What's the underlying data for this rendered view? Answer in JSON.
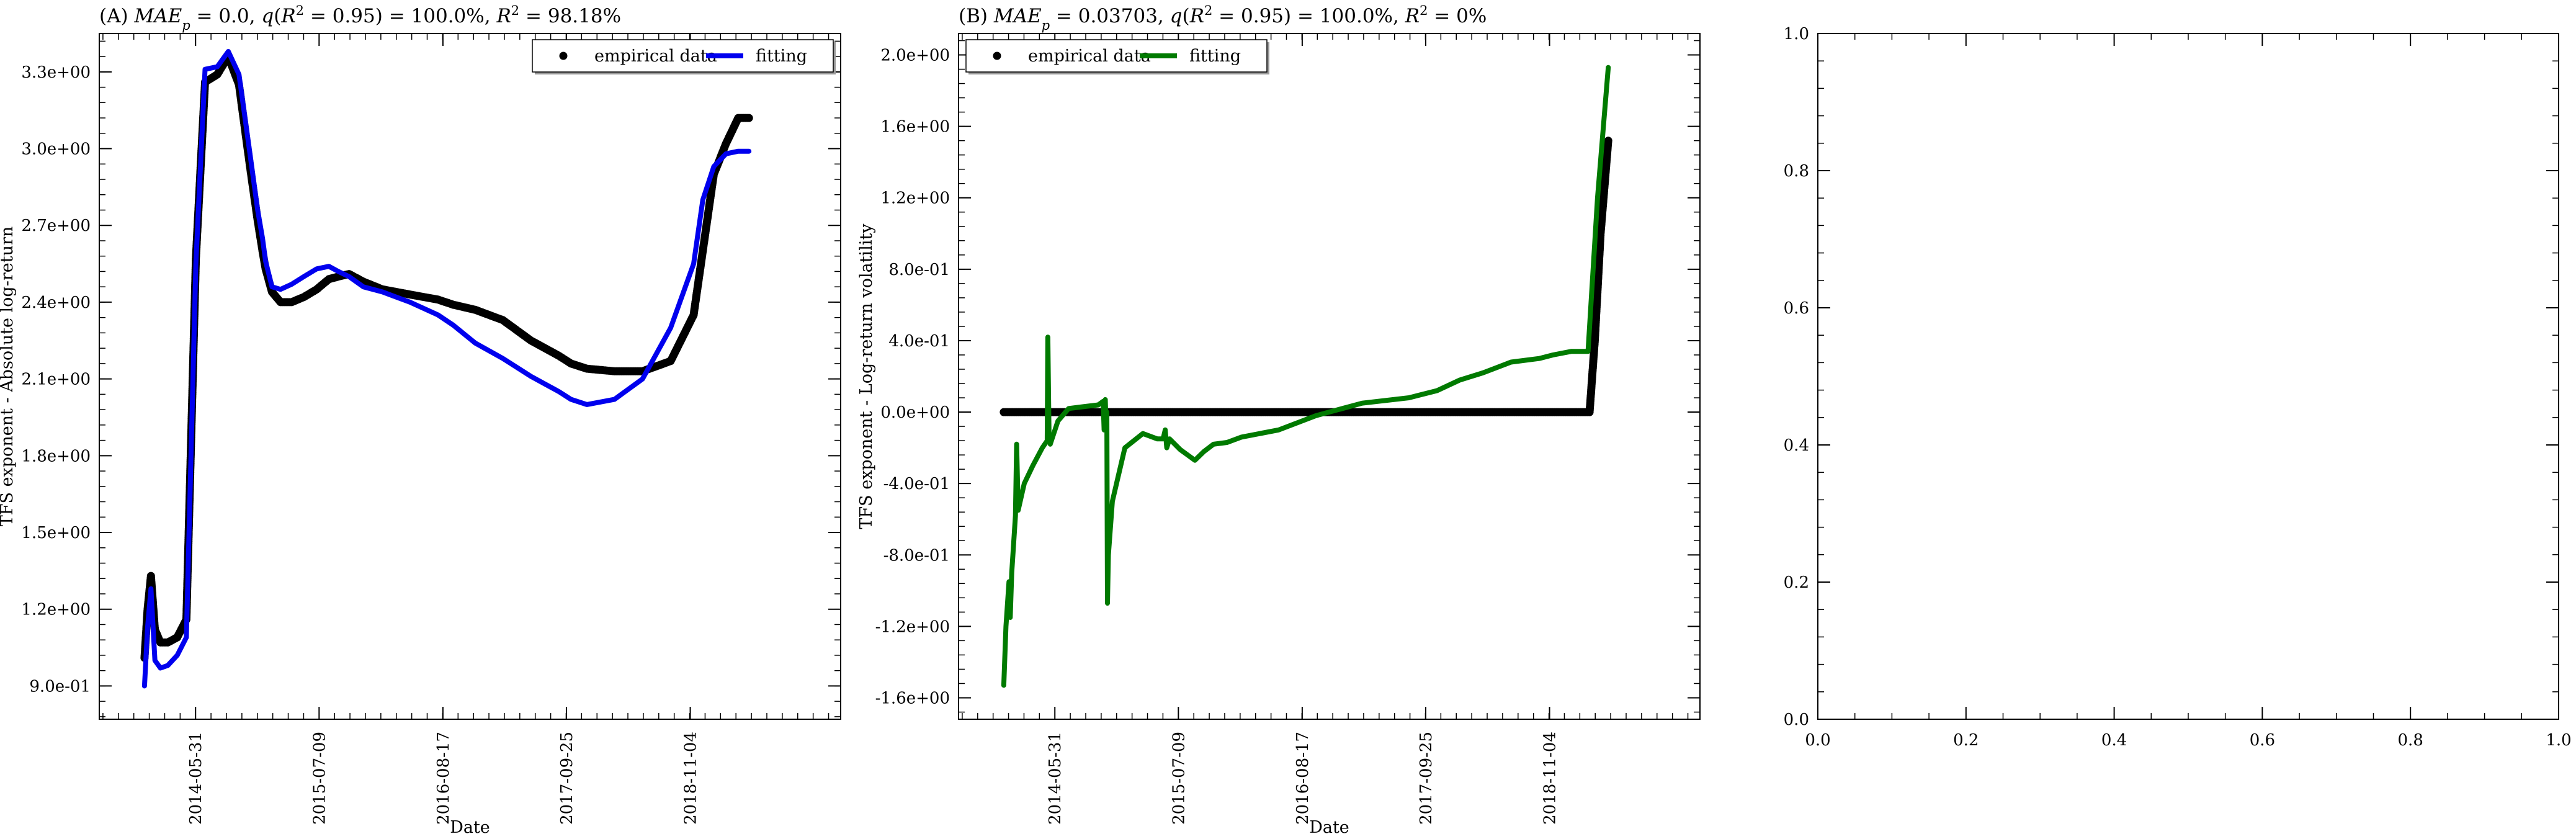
{
  "chart_data": [
    {
      "type": "line",
      "title": "(A) MAE_p = 0.0, q(R^2 = 0.95) = 100.0%, R^2 = 98.18%",
      "title_parts": [
        "(A) ",
        "MAE",
        "p",
        " = 0.0, ",
        "q",
        "(",
        "R",
        "2",
        " = 0.95) = 100.0%, ",
        "R",
        "2",
        " = 98.18%"
      ],
      "xlabel": "Date",
      "ylabel": "TFS exponent - Absolute log-return",
      "x_ticks": [
        "2014-05-31",
        "2015-07-09",
        "2016-08-17",
        "2017-09-25",
        "2018-11-04"
      ],
      "y_ticks": [
        "9.0e-01",
        "1.2e+00",
        "1.5e+00",
        "1.8e+00",
        "2.1e+00",
        "2.4e+00",
        "2.7e+00",
        "3.0e+00",
        "3.3e+00"
      ],
      "xlim": [
        "2013-07-20",
        "2020-03-10"
      ],
      "ylim": [
        0.77,
        3.45
      ],
      "legend": {
        "placement": "top-right",
        "entries": [
          "empirical data",
          "fitting"
        ]
      },
      "series": [
        {
          "name": "empirical data",
          "style": "dots",
          "color": "#000000",
          "x": [
            "2013-12-15",
            "2013-12-25",
            "2014-01-05",
            "2014-01-18",
            "2014-02-05",
            "2014-03-01",
            "2014-04-01",
            "2014-05-01",
            "2014-06-01",
            "2014-07-01",
            "2014-08-10",
            "2014-09-15",
            "2014-10-20",
            "2014-11-25",
            "2014-12-20",
            "2015-01-05",
            "2015-01-15",
            "2015-02-05",
            "2015-03-05",
            "2015-04-10",
            "2015-05-20",
            "2015-07-01",
            "2015-08-10",
            "2015-09-10",
            "2015-10-15",
            "2015-12-01",
            "2016-02-01",
            "2016-05-01",
            "2016-08-01",
            "2016-09-20",
            "2016-12-01",
            "2017-03-01",
            "2017-06-01",
            "2017-09-01",
            "2017-10-10",
            "2017-12-01",
            "2018-03-01",
            "2018-06-01",
            "2018-09-01",
            "2018-11-15",
            "2018-12-15",
            "2019-01-20",
            "2019-03-01",
            "2019-04-10",
            "2019-05-15"
          ],
          "y": [
            1.01,
            1.2,
            1.33,
            1.12,
            1.07,
            1.07,
            1.09,
            1.16,
            2.57,
            3.26,
            3.29,
            3.36,
            3.25,
            2.93,
            2.72,
            2.6,
            2.53,
            2.44,
            2.4,
            2.4,
            2.42,
            2.45,
            2.49,
            2.5,
            2.51,
            2.48,
            2.45,
            2.43,
            2.41,
            2.39,
            2.37,
            2.33,
            2.25,
            2.19,
            2.16,
            2.14,
            2.13,
            2.13,
            2.17,
            2.35,
            2.6,
            2.9,
            3.02,
            3.12,
            3.12
          ]
        },
        {
          "name": "fitting",
          "style": "line",
          "color": "#0000ee",
          "x": [
            "2013-12-15",
            "2013-12-25",
            "2014-01-05",
            "2014-01-18",
            "2014-02-05",
            "2014-03-01",
            "2014-04-01",
            "2014-05-01",
            "2014-06-01",
            "2014-07-01",
            "2014-08-10",
            "2014-09-15",
            "2014-10-20",
            "2014-11-25",
            "2014-12-20",
            "2015-01-05",
            "2015-01-15",
            "2015-02-05",
            "2015-03-05",
            "2015-04-10",
            "2015-05-20",
            "2015-07-01",
            "2015-08-10",
            "2015-09-10",
            "2015-10-15",
            "2015-12-01",
            "2016-02-01",
            "2016-05-01",
            "2016-08-01",
            "2016-09-20",
            "2016-12-01",
            "2017-03-01",
            "2017-06-01",
            "2017-09-01",
            "2017-10-10",
            "2017-12-01",
            "2018-03-01",
            "2018-06-01",
            "2018-09-01",
            "2018-11-15",
            "2018-12-15",
            "2019-01-20",
            "2019-03-01",
            "2019-04-10",
            "2019-05-15"
          ],
          "y": [
            0.9,
            1.13,
            1.28,
            1.0,
            0.97,
            0.98,
            1.02,
            1.09,
            2.55,
            3.31,
            3.32,
            3.38,
            3.29,
            2.98,
            2.76,
            2.65,
            2.56,
            2.46,
            2.45,
            2.47,
            2.5,
            2.53,
            2.54,
            2.52,
            2.5,
            2.46,
            2.44,
            2.4,
            2.35,
            2.31,
            2.24,
            2.18,
            2.11,
            2.05,
            2.02,
            2.0,
            2.02,
            2.1,
            2.3,
            2.55,
            2.8,
            2.93,
            2.98,
            2.99,
            2.99
          ]
        }
      ]
    },
    {
      "type": "line",
      "title": "(B) MAE_p = 0.03703, q(R^2 = 0.95) = 100.0%, R^2 = 0%",
      "title_parts": [
        "(B) ",
        "MAE",
        "p",
        " = 0.03703, ",
        "q",
        "(",
        "R",
        "2",
        " = 0.95) = 100.0%, ",
        "R",
        "2",
        " = 0%"
      ],
      "xlabel": "Date",
      "ylabel": "TFS exponent - Log-return volatility",
      "x_ticks": [
        "2014-05-31",
        "2015-07-09",
        "2016-08-17",
        "2017-09-25",
        "2018-11-04"
      ],
      "y_ticks": [
        "-1.6e+00",
        "-1.2e+00",
        "-8.0e-01",
        "-4.0e-01",
        "0.0e+00",
        "4.0e-01",
        "8.0e-01",
        "1.2e+00",
        "1.6e+00",
        "2.0e+00"
      ],
      "xlim": [
        "2013-07-20",
        "2020-03-10"
      ],
      "ylim": [
        -1.72,
        2.12
      ],
      "legend": {
        "placement": "top-left",
        "entries": [
          "empirical data",
          "fitting"
        ]
      },
      "series": [
        {
          "name": "empirical data",
          "style": "dots",
          "color": "#000000",
          "x": [
            "2013-12-15",
            "2014-06-01",
            "2015-01-01",
            "2015-07-01",
            "2016-01-01",
            "2016-07-01",
            "2017-01-01",
            "2017-07-01",
            "2018-01-01",
            "2018-07-01",
            "2019-01-01",
            "2019-03-15",
            "2019-04-01",
            "2019-04-20",
            "2019-05-15"
          ],
          "y": [
            0.0,
            0.0,
            0.0,
            0.0,
            0.0,
            0.0,
            0.0,
            0.0,
            0.0,
            0.0,
            0.0,
            0.0,
            0.4,
            1.0,
            1.52
          ]
        },
        {
          "name": "fitting",
          "style": "line",
          "color": "#007a00",
          "x": [
            "2013-12-15",
            "2013-12-22",
            "2014-01-01",
            "2014-01-05",
            "2014-01-10",
            "2014-01-22",
            "2014-01-26",
            "2014-01-31",
            "2014-02-20",
            "2014-03-20",
            "2014-04-20",
            "2014-05-06",
            "2014-05-08",
            "2014-05-12",
            "2014-05-16",
            "2014-06-10",
            "2014-07-15",
            "2014-09-01",
            "2014-10-20",
            "2014-11-05",
            "2014-11-08",
            "2014-11-12",
            "2014-11-14",
            "2014-11-17",
            "2014-11-19",
            "2014-11-22",
            "2014-12-05",
            "2015-01-15",
            "2015-03-15",
            "2015-05-01",
            "2015-05-20",
            "2015-05-27",
            "2015-06-01",
            "2015-06-10",
            "2015-07-15",
            "2015-09-01",
            "2015-10-01",
            "2015-11-01",
            "2015-12-15",
            "2016-02-01",
            "2016-06-01",
            "2016-10-01",
            "2017-03-01",
            "2017-08-01",
            "2017-11-01",
            "2018-01-15",
            "2018-04-01",
            "2018-07-01",
            "2018-10-01",
            "2018-11-15",
            "2019-01-15",
            "2019-03-10",
            "2019-04-10",
            "2019-05-15"
          ],
          "y": [
            -1.53,
            -1.2,
            -0.95,
            -1.15,
            -0.9,
            -0.58,
            -0.18,
            -0.55,
            -0.4,
            -0.3,
            -0.2,
            -0.16,
            0.42,
            -0.15,
            -0.18,
            -0.05,
            0.02,
            0.03,
            0.04,
            0.06,
            -0.1,
            0.07,
            -0.05,
            0.0,
            -1.07,
            -0.8,
            -0.5,
            -0.2,
            -0.12,
            -0.15,
            -0.15,
            -0.1,
            -0.2,
            -0.15,
            -0.21,
            -0.27,
            -0.22,
            -0.18,
            -0.17,
            -0.14,
            -0.1,
            -0.02,
            0.05,
            0.08,
            0.12,
            0.18,
            0.22,
            0.28,
            0.3,
            0.32,
            0.34,
            0.34,
            1.2,
            1.93
          ]
        }
      ]
    },
    {
      "type": "line",
      "title": "",
      "xlabel": "",
      "ylabel": "",
      "x_ticks": [
        "0.0",
        "0.2",
        "0.4",
        "0.6",
        "0.8",
        "1.0"
      ],
      "y_ticks": [
        "0.0",
        "0.2",
        "0.4",
        "0.6",
        "0.8",
        "1.0"
      ],
      "xlim": [
        0,
        1
      ],
      "ylim": [
        0,
        1
      ],
      "series": []
    }
  ]
}
